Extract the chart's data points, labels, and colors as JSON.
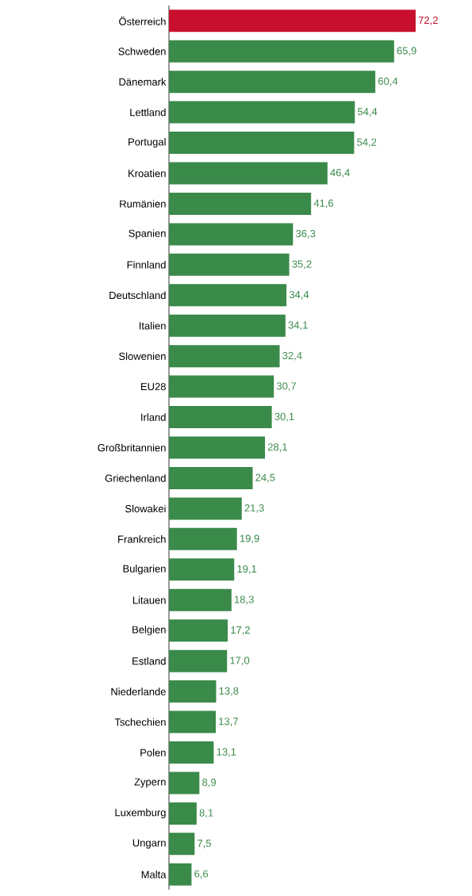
{
  "chart_data": {
    "type": "bar",
    "orientation": "horizontal",
    "tick_labels": "y",
    "categories": [
      "Österreich",
      "Schweden",
      "Dänemark",
      "Lettland",
      "Portugal",
      "Kroatien",
      "Rumänien",
      "Spanien",
      "Finnland",
      "Deutschland",
      "Italien",
      "Slowenien",
      "EU28",
      "Irland",
      "Großbritannien",
      "Griechenland",
      "Slowakei",
      "Frankreich",
      "Bulgarien",
      "Litauen",
      "Belgien",
      "Estland",
      "Niederlande",
      "Tschechien",
      "Polen",
      "Zypern",
      "Luxemburg",
      "Ungarn",
      "Malta"
    ],
    "values": [
      72.2,
      65.9,
      60.4,
      54.4,
      54.2,
      46.4,
      41.6,
      36.3,
      35.2,
      34.4,
      34.1,
      32.4,
      30.7,
      30.1,
      28.1,
      24.5,
      21.3,
      19.9,
      19.1,
      18.3,
      17.2,
      17.0,
      13.8,
      13.7,
      13.1,
      8.9,
      8.1,
      7.5,
      6.6
    ],
    "value_labels": [
      "72,2",
      "65,9",
      "60,4",
      "54,4",
      "54,2",
      "46,4",
      "41,6",
      "36,3",
      "35,2",
      "34,4",
      "34,1",
      "32,4",
      "30,7",
      "30,1",
      "28,1",
      "24,5",
      "21,3",
      "19,9",
      "19,1",
      "18,3",
      "17,2",
      "17,0",
      "13,8",
      "13,7",
      "13,1",
      "8,9",
      "8,1",
      "7,5",
      "6,6"
    ],
    "colors": [
      "#c8102e",
      "#3a8a4a",
      "#3a8a4a",
      "#3a8a4a",
      "#3a8a4a",
      "#3a8a4a",
      "#3a8a4a",
      "#3a8a4a",
      "#3a8a4a",
      "#3a8a4a",
      "#3a8a4a",
      "#3a8a4a",
      "#3a8a4a",
      "#3a8a4a",
      "#3a8a4a",
      "#3a8a4a",
      "#3a8a4a",
      "#3a8a4a",
      "#3a8a4a",
      "#3a8a4a",
      "#3a8a4a",
      "#3a8a4a",
      "#3a8a4a",
      "#3a8a4a",
      "#3a8a4a",
      "#3a8a4a",
      "#3a8a4a",
      "#3a8a4a",
      "#3a8a4a"
    ]
  }
}
